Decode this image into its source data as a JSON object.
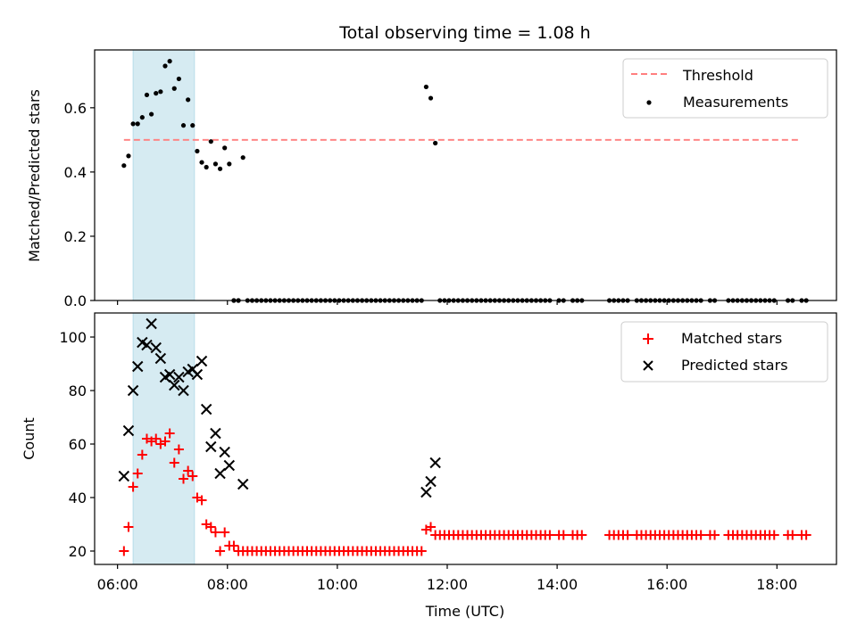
{
  "chart_data": [
    {
      "type": "scatter",
      "panel": "top",
      "title": "Total observing time = 1.08 h",
      "xlabel": "",
      "ylabel": "Matched/Predicted stars",
      "xlim": [
        "05:35",
        "19:05"
      ],
      "ylim": [
        0,
        0.78
      ],
      "yticks": [
        "0.0",
        "0.2",
        "0.4",
        "0.6"
      ],
      "ytick_values": [
        0,
        0.2,
        0.4,
        0.6
      ],
      "grid": false,
      "legend_position": "top-right",
      "shaded_span": {
        "start": "06:17",
        "end": "07:24",
        "color": "#add8e6"
      },
      "series": [
        {
          "name": "Threshold",
          "style": "dashed-line",
          "color": "#ff7f7f",
          "x": [
            "06:07",
            "18:23"
          ],
          "y": [
            0.5,
            0.5
          ]
        },
        {
          "name": "Measurements",
          "style": "dot",
          "color": "#000000",
          "x": [
            "06:07",
            "06:12",
            "06:17",
            "06:22",
            "06:27",
            "06:32",
            "06:37",
            "06:42",
            "06:47",
            "06:52",
            "06:57",
            "07:02",
            "07:07",
            "07:12",
            "07:17",
            "07:22",
            "07:27",
            "07:32",
            "07:37",
            "07:42",
            "07:47",
            "07:52",
            "07:57",
            "08:02",
            "08:07",
            "08:12",
            "08:17",
            "11:37",
            "11:42",
            "11:47"
          ],
          "y": [
            0.42,
            0.45,
            0.55,
            0.55,
            0.57,
            0.64,
            0.58,
            0.645,
            0.65,
            0.73,
            0.745,
            0.66,
            0.69,
            0.545,
            0.625,
            0.545,
            0.465,
            0.43,
            0.415,
            0.495,
            0.425,
            0.41,
            0.475,
            0.425,
            0.0,
            0.0,
            0.445,
            0.665,
            0.63,
            0.49
          ]
        }
      ],
      "zero_measurement_times": [
        "08:07",
        "08:12",
        "08:22",
        "08:27",
        "08:32",
        "08:37",
        "08:42",
        "08:47",
        "08:52",
        "08:57",
        "09:02",
        "09:07",
        "09:12",
        "09:17",
        "09:22",
        "09:27",
        "09:32",
        "09:37",
        "09:42",
        "09:47",
        "09:52",
        "09:57",
        "10:02",
        "10:07",
        "10:12",
        "10:17",
        "10:22",
        "10:27",
        "10:32",
        "10:37",
        "10:42",
        "10:47",
        "10:52",
        "10:57",
        "11:02",
        "11:07",
        "11:12",
        "11:17",
        "11:22",
        "11:27",
        "11:32",
        "11:52",
        "11:57",
        "12:02",
        "12:07",
        "12:12",
        "12:17",
        "12:22",
        "12:27",
        "12:32",
        "12:37",
        "12:42",
        "12:47",
        "12:52",
        "12:57",
        "13:02",
        "13:07",
        "13:12",
        "13:17",
        "13:22",
        "13:27",
        "13:32",
        "13:37",
        "13:42",
        "13:47",
        "13:52",
        "14:02",
        "14:07",
        "14:17",
        "14:22",
        "14:27",
        "14:57",
        "15:02",
        "15:07",
        "15:12",
        "15:17",
        "15:27",
        "15:32",
        "15:37",
        "15:42",
        "15:47",
        "15:52",
        "15:57",
        "16:02",
        "16:07",
        "16:12",
        "16:17",
        "16:22",
        "16:27",
        "16:32",
        "16:37",
        "16:47",
        "16:52",
        "17:07",
        "17:12",
        "17:17",
        "17:22",
        "17:27",
        "17:32",
        "17:37",
        "17:42",
        "17:47",
        "17:52",
        "17:57",
        "18:12",
        "18:17",
        "18:27",
        "18:32"
      ]
    },
    {
      "type": "scatter",
      "panel": "bottom",
      "title": "",
      "xlabel": "Time (UTC)",
      "ylabel": "Count",
      "xlim": [
        "05:35",
        "19:05"
      ],
      "ylim": [
        15,
        109
      ],
      "xticks": [
        "06:00",
        "08:00",
        "10:00",
        "12:00",
        "14:00",
        "16:00",
        "18:00"
      ],
      "yticks": [
        "20",
        "40",
        "60",
        "80",
        "100"
      ],
      "ytick_values": [
        20,
        40,
        60,
        80,
        100
      ],
      "grid": false,
      "legend_position": "top-right",
      "shaded_span": {
        "start": "06:17",
        "end": "07:24",
        "color": "#add8e6"
      },
      "series": [
        {
          "name": "Matched stars",
          "style": "plus",
          "color": "#ff0000",
          "x": [
            "06:07",
            "06:12",
            "06:17",
            "06:22",
            "06:27",
            "06:32",
            "06:37",
            "06:42",
            "06:47",
            "06:52",
            "06:57",
            "07:02",
            "07:07",
            "07:12",
            "07:17",
            "07:22",
            "07:27",
            "07:32",
            "07:37",
            "07:42",
            "07:47",
            "07:52",
            "07:57",
            "08:02",
            "08:07",
            "08:12",
            "08:17",
            "11:37",
            "11:42",
            "11:47"
          ],
          "y": [
            20,
            29,
            44,
            49,
            56,
            62,
            61,
            62,
            60,
            61,
            64,
            53,
            58,
            47,
            50,
            48,
            40,
            39,
            30,
            29,
            27,
            20,
            27,
            22,
            22,
            20,
            20,
            28,
            29,
            26
          ]
        },
        {
          "name": "Predicted stars",
          "style": "x",
          "color": "#000000",
          "x": [
            "06:07",
            "06:12",
            "06:17",
            "06:22",
            "06:27",
            "06:32",
            "06:37",
            "06:42",
            "06:47",
            "06:52",
            "06:57",
            "07:02",
            "07:07",
            "07:12",
            "07:17",
            "07:22",
            "07:27",
            "07:32",
            "07:37",
            "07:42",
            "07:47",
            "07:52",
            "07:57",
            "08:02",
            "08:17",
            "11:37",
            "11:42",
            "11:47"
          ],
          "y": [
            48,
            65,
            80,
            89,
            98,
            97,
            105,
            96,
            92,
            85,
            86,
            82,
            85,
            80,
            87,
            88,
            86,
            91,
            73,
            59,
            64,
            49,
            57,
            52,
            45,
            42,
            46,
            53
          ]
        }
      ],
      "flat_matched_times": [
        "08:22",
        "08:27",
        "08:32",
        "08:37",
        "08:42",
        "08:47",
        "08:52",
        "08:57",
        "09:02",
        "09:07",
        "09:12",
        "09:17",
        "09:22",
        "09:27",
        "09:32",
        "09:37",
        "09:42",
        "09:47",
        "09:52",
        "09:57",
        "10:02",
        "10:07",
        "10:12",
        "10:17",
        "10:22",
        "10:27",
        "10:32",
        "10:37",
        "10:42",
        "10:47",
        "10:52",
        "10:57",
        "11:02",
        "11:07",
        "11:12",
        "11:17",
        "11:22",
        "11:27",
        "11:32"
      ],
      "flat_matched_value": 20,
      "late_matched_times": [
        "11:52",
        "11:57",
        "12:02",
        "12:07",
        "12:12",
        "12:17",
        "12:22",
        "12:27",
        "12:32",
        "12:37",
        "12:42",
        "12:47",
        "12:52",
        "12:57",
        "13:02",
        "13:07",
        "13:12",
        "13:17",
        "13:22",
        "13:27",
        "13:32",
        "13:37",
        "13:42",
        "13:47",
        "13:52",
        "14:02",
        "14:07",
        "14:17",
        "14:22",
        "14:27",
        "14:57",
        "15:02",
        "15:07",
        "15:12",
        "15:17",
        "15:27",
        "15:32",
        "15:37",
        "15:42",
        "15:47",
        "15:52",
        "15:57",
        "16:02",
        "16:07",
        "16:12",
        "16:17",
        "16:22",
        "16:27",
        "16:32",
        "16:37",
        "16:47",
        "16:52",
        "17:07",
        "17:12",
        "17:17",
        "17:22",
        "17:27",
        "17:32",
        "17:37",
        "17:42",
        "17:47",
        "17:52",
        "17:57",
        "18:12",
        "18:17",
        "18:27",
        "18:32"
      ],
      "late_matched_value": 26
    }
  ]
}
